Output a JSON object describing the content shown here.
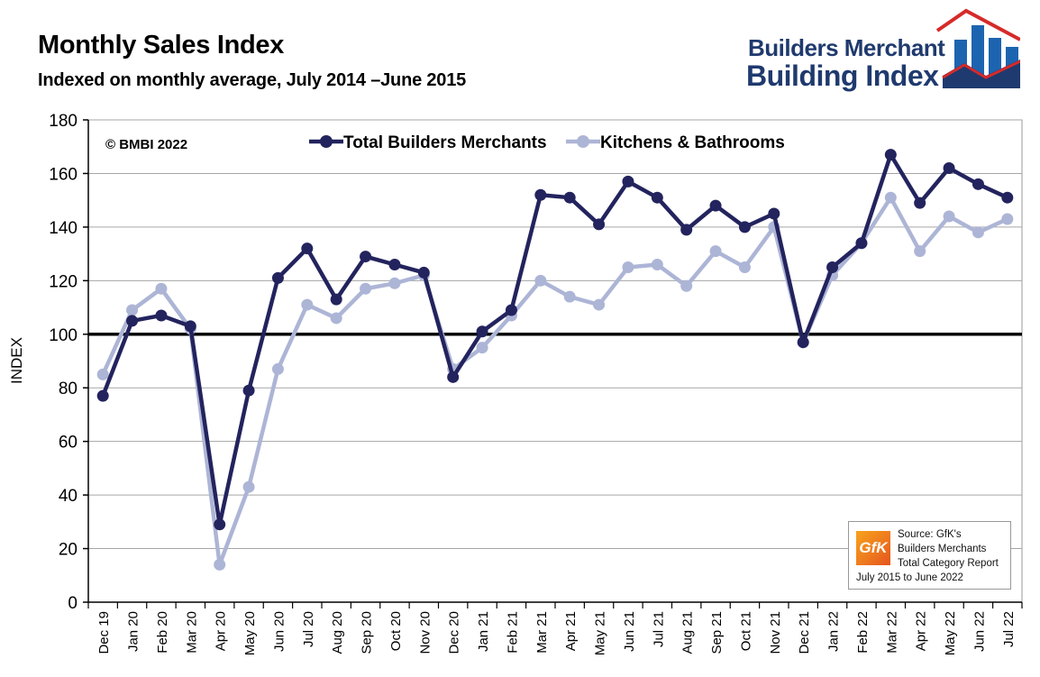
{
  "title": "Monthly Sales Index",
  "subtitle": "Indexed on monthly average, July 2014 –June 2015",
  "logo": {
    "line1": "Builders Merchant",
    "line2": "Building Index",
    "colors": {
      "navy": "#1f3a6e",
      "blue": "#1d64b0",
      "red": "#d62a2a"
    }
  },
  "source": {
    "logo_text": "GfK",
    "line1": "Source: GfK's",
    "line2": "Builders Merchants",
    "line3": "Total Category Report",
    "line4": "July 2015 to June 2022"
  },
  "chart_data": {
    "type": "line",
    "copyright": "© BMBI 2022",
    "ylabel": "INDEX",
    "xlabel": "",
    "ylim": [
      0,
      180
    ],
    "yticks": [
      0,
      20,
      40,
      60,
      80,
      100,
      120,
      140,
      160,
      180
    ],
    "reference_line": 100,
    "grid": true,
    "legend_position": "top-center",
    "categories": [
      "Dec 19",
      "Jan 20",
      "Feb 20",
      "Mar 20",
      "Apr 20",
      "May 20",
      "Jun 20",
      "Jul 20",
      "Aug 20",
      "Sep 20",
      "Oct 20",
      "Nov 20",
      "Dec 20",
      "Jan 21",
      "Feb 21",
      "Mar 21",
      "Apr 21",
      "May 21",
      "Jun 21",
      "Jul 21",
      "Aug 21",
      "Sep 21",
      "Oct 21",
      "Nov 21",
      "Dec 21",
      "Jan 22",
      "Feb 22",
      "Mar 22",
      "Apr 22",
      "May 22",
      "Jun 22",
      "Jul 22"
    ],
    "series": [
      {
        "name": "Total Builders Merchants",
        "color": "#23235e",
        "values": [
          77,
          105,
          107,
          103,
          29,
          79,
          121,
          132,
          113,
          129,
          126,
          123,
          84,
          101,
          109,
          152,
          151,
          141,
          157,
          151,
          139,
          148,
          140,
          145,
          97,
          125,
          134,
          167,
          149,
          162,
          156,
          151
        ]
      },
      {
        "name": "Kitchens & Bathrooms",
        "color": "#adb5d6",
        "values": [
          85,
          109,
          117,
          102,
          14,
          43,
          87,
          111,
          106,
          117,
          119,
          122,
          87,
          95,
          107,
          120,
          114,
          111,
          125,
          126,
          118,
          131,
          125,
          140,
          97,
          122,
          134,
          151,
          131,
          144,
          138,
          143
        ]
      }
    ]
  }
}
